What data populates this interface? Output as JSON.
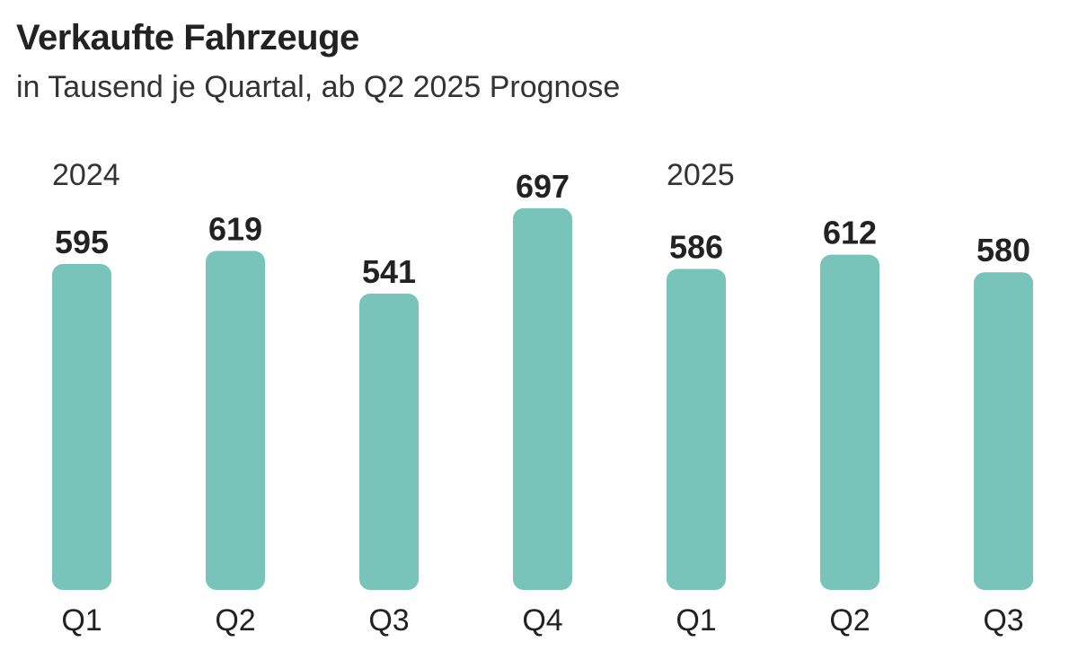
{
  "title": "Verkaufte Fahrzeuge",
  "subtitle": "in Tausend je Quartal, ab Q2 2025 Prognose",
  "chart_data": {
    "type": "bar",
    "title": "Verkaufte Fahrzeuge",
    "subtitle": "in Tausend je Quartal, ab Q2 2025 Prognose",
    "categories": [
      "Q1",
      "Q2",
      "Q3",
      "Q4",
      "Q1",
      "Q2",
      "Q3"
    ],
    "year_labels": [
      {
        "label": "2024",
        "category_index": 0
      },
      {
        "label": "2025",
        "category_index": 4
      }
    ],
    "values": [
      595,
      619,
      541,
      697,
      586,
      612,
      580
    ],
    "ylim": [
      0,
      697
    ],
    "grid": false,
    "y_axis_shown": false,
    "bar_color": "#78c4bb",
    "data_labels": true
  }
}
